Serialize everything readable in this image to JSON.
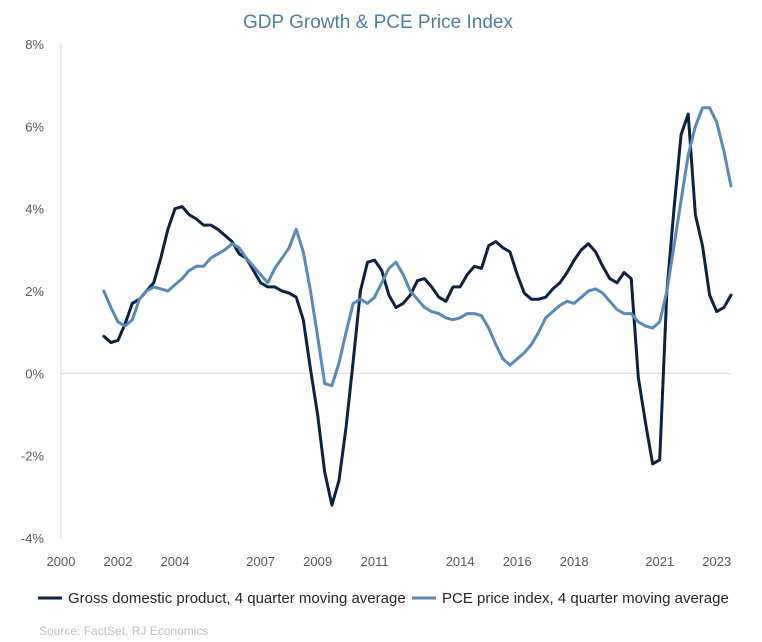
{
  "chart_data": {
    "type": "line",
    "title": "GDP Growth & PCE Price Index",
    "source": "Source: FactSet, RJ Economics",
    "xlabel": "",
    "ylabel": "",
    "xlim": [
      2000,
      2023.5
    ],
    "ylim": [
      -4,
      8
    ],
    "x_ticks": [
      {
        "value": 2000,
        "label": "2000"
      },
      {
        "value": 2002,
        "label": "2002"
      },
      {
        "value": 2004,
        "label": "2004"
      },
      {
        "value": 2007,
        "label": "2007"
      },
      {
        "value": 2009,
        "label": "2009"
      },
      {
        "value": 2011,
        "label": "2011"
      },
      {
        "value": 2014,
        "label": "2014"
      },
      {
        "value": 2016,
        "label": "2016"
      },
      {
        "value": 2018,
        "label": "2018"
      },
      {
        "value": 2021,
        "label": "2021"
      },
      {
        "value": 2023,
        "label": "2023"
      }
    ],
    "y_ticks": [
      {
        "value": 8,
        "label": "8%"
      },
      {
        "value": 6,
        "label": "6%"
      },
      {
        "value": 4,
        "label": "4%"
      },
      {
        "value": 2,
        "label": "2%"
      },
      {
        "value": 0,
        "label": "0%"
      },
      {
        "value": -2,
        "label": "-2%"
      },
      {
        "value": -4,
        "label": "-4%"
      }
    ],
    "grid": false,
    "zero_line": true,
    "legend_position": "bottom",
    "series": [
      {
        "name": "Gross domestic product,  4 quarter moving average",
        "color": "#0d2240",
        "points": [
          [
            2001.5,
            0.9
          ],
          [
            2001.75,
            0.75
          ],
          [
            2002.0,
            0.8
          ],
          [
            2002.25,
            1.2
          ],
          [
            2002.5,
            1.7
          ],
          [
            2002.75,
            1.8
          ],
          [
            2003.0,
            2.0
          ],
          [
            2003.25,
            2.2
          ],
          [
            2003.5,
            2.8
          ],
          [
            2003.75,
            3.5
          ],
          [
            2004.0,
            4.0
          ],
          [
            2004.25,
            4.05
          ],
          [
            2004.5,
            3.85
          ],
          [
            2004.75,
            3.75
          ],
          [
            2005.0,
            3.6
          ],
          [
            2005.25,
            3.6
          ],
          [
            2005.5,
            3.5
          ],
          [
            2005.75,
            3.35
          ],
          [
            2006.0,
            3.2
          ],
          [
            2006.25,
            2.9
          ],
          [
            2006.5,
            2.8
          ],
          [
            2006.75,
            2.5
          ],
          [
            2007.0,
            2.2
          ],
          [
            2007.25,
            2.1
          ],
          [
            2007.5,
            2.1
          ],
          [
            2007.75,
            2.0
          ],
          [
            2008.0,
            1.95
          ],
          [
            2008.25,
            1.85
          ],
          [
            2008.5,
            1.3
          ],
          [
            2008.75,
            0.1
          ],
          [
            2009.0,
            -1.0
          ],
          [
            2009.25,
            -2.4
          ],
          [
            2009.5,
            -3.2
          ],
          [
            2009.75,
            -2.6
          ],
          [
            2010.0,
            -1.3
          ],
          [
            2010.25,
            0.3
          ],
          [
            2010.5,
            2.0
          ],
          [
            2010.75,
            2.7
          ],
          [
            2011.0,
            2.75
          ],
          [
            2011.25,
            2.5
          ],
          [
            2011.5,
            1.9
          ],
          [
            2011.75,
            1.6
          ],
          [
            2012.0,
            1.7
          ],
          [
            2012.25,
            1.9
          ],
          [
            2012.5,
            2.25
          ],
          [
            2012.75,
            2.3
          ],
          [
            2013.0,
            2.1
          ],
          [
            2013.25,
            1.85
          ],
          [
            2013.5,
            1.75
          ],
          [
            2013.75,
            2.1
          ],
          [
            2014.0,
            2.1
          ],
          [
            2014.25,
            2.4
          ],
          [
            2014.5,
            2.6
          ],
          [
            2014.75,
            2.55
          ],
          [
            2015.0,
            3.1
          ],
          [
            2015.25,
            3.2
          ],
          [
            2015.5,
            3.05
          ],
          [
            2015.75,
            2.95
          ],
          [
            2016.0,
            2.4
          ],
          [
            2016.25,
            1.95
          ],
          [
            2016.5,
            1.8
          ],
          [
            2016.75,
            1.8
          ],
          [
            2017.0,
            1.85
          ],
          [
            2017.25,
            2.05
          ],
          [
            2017.5,
            2.2
          ],
          [
            2017.75,
            2.45
          ],
          [
            2018.0,
            2.75
          ],
          [
            2018.25,
            3.0
          ],
          [
            2018.5,
            3.15
          ],
          [
            2018.75,
            2.95
          ],
          [
            2019.0,
            2.6
          ],
          [
            2019.25,
            2.3
          ],
          [
            2019.5,
            2.2
          ],
          [
            2019.75,
            2.45
          ],
          [
            2020.0,
            2.3
          ],
          [
            2020.25,
            -0.1
          ],
          [
            2020.5,
            -1.2
          ],
          [
            2020.75,
            -2.2
          ],
          [
            2021.0,
            -2.1
          ],
          [
            2021.25,
            2.0
          ],
          [
            2021.5,
            4.0
          ],
          [
            2021.75,
            5.8
          ],
          [
            2022.0,
            6.3
          ],
          [
            2022.25,
            3.85
          ],
          [
            2022.5,
            3.1
          ],
          [
            2022.75,
            1.9
          ],
          [
            2023.0,
            1.5
          ],
          [
            2023.25,
            1.6
          ],
          [
            2023.5,
            1.9
          ]
        ]
      },
      {
        "name": "PCE price index, 4 quarter moving average",
        "color": "#5b88b5",
        "points": [
          [
            2001.5,
            2.0
          ],
          [
            2001.75,
            1.6
          ],
          [
            2002.0,
            1.25
          ],
          [
            2002.25,
            1.15
          ],
          [
            2002.5,
            1.3
          ],
          [
            2002.75,
            1.8
          ],
          [
            2003.0,
            2.0
          ],
          [
            2003.25,
            2.1
          ],
          [
            2003.5,
            2.05
          ],
          [
            2003.75,
            2.0
          ],
          [
            2004.0,
            2.15
          ],
          [
            2004.25,
            2.3
          ],
          [
            2004.5,
            2.5
          ],
          [
            2004.75,
            2.6
          ],
          [
            2005.0,
            2.6
          ],
          [
            2005.25,
            2.8
          ],
          [
            2005.5,
            2.9
          ],
          [
            2005.75,
            3.0
          ],
          [
            2006.0,
            3.15
          ],
          [
            2006.25,
            3.05
          ],
          [
            2006.5,
            2.8
          ],
          [
            2006.75,
            2.6
          ],
          [
            2007.0,
            2.4
          ],
          [
            2007.25,
            2.2
          ],
          [
            2007.5,
            2.55
          ],
          [
            2007.75,
            2.8
          ],
          [
            2008.0,
            3.05
          ],
          [
            2008.25,
            3.5
          ],
          [
            2008.5,
            2.95
          ],
          [
            2008.75,
            2.0
          ],
          [
            2009.0,
            0.9
          ],
          [
            2009.25,
            -0.25
          ],
          [
            2009.5,
            -0.3
          ],
          [
            2009.75,
            0.25
          ],
          [
            2010.0,
            1.0
          ],
          [
            2010.25,
            1.7
          ],
          [
            2010.5,
            1.8
          ],
          [
            2010.75,
            1.7
          ],
          [
            2011.0,
            1.85
          ],
          [
            2011.25,
            2.2
          ],
          [
            2011.5,
            2.55
          ],
          [
            2011.75,
            2.7
          ],
          [
            2012.0,
            2.4
          ],
          [
            2012.25,
            2.0
          ],
          [
            2012.5,
            1.8
          ],
          [
            2012.75,
            1.6
          ],
          [
            2013.0,
            1.5
          ],
          [
            2013.25,
            1.45
          ],
          [
            2013.5,
            1.35
          ],
          [
            2013.75,
            1.3
          ],
          [
            2014.0,
            1.35
          ],
          [
            2014.25,
            1.45
          ],
          [
            2014.5,
            1.45
          ],
          [
            2014.75,
            1.4
          ],
          [
            2015.0,
            1.1
          ],
          [
            2015.25,
            0.7
          ],
          [
            2015.5,
            0.35
          ],
          [
            2015.75,
            0.2
          ],
          [
            2016.0,
            0.35
          ],
          [
            2016.25,
            0.5
          ],
          [
            2016.5,
            0.7
          ],
          [
            2016.75,
            1.0
          ],
          [
            2017.0,
            1.35
          ],
          [
            2017.25,
            1.5
          ],
          [
            2017.5,
            1.65
          ],
          [
            2017.75,
            1.75
          ],
          [
            2018.0,
            1.7
          ],
          [
            2018.25,
            1.85
          ],
          [
            2018.5,
            2.0
          ],
          [
            2018.75,
            2.05
          ],
          [
            2019.0,
            1.95
          ],
          [
            2019.25,
            1.75
          ],
          [
            2019.5,
            1.55
          ],
          [
            2019.75,
            1.45
          ],
          [
            2020.0,
            1.45
          ],
          [
            2020.25,
            1.25
          ],
          [
            2020.5,
            1.15
          ],
          [
            2020.75,
            1.1
          ],
          [
            2021.0,
            1.25
          ],
          [
            2021.25,
            2.0
          ],
          [
            2021.5,
            3.1
          ],
          [
            2021.75,
            4.2
          ],
          [
            2022.0,
            5.3
          ],
          [
            2022.25,
            6.0
          ],
          [
            2022.5,
            6.45
          ],
          [
            2022.75,
            6.45
          ],
          [
            2023.0,
            6.1
          ],
          [
            2023.25,
            5.4
          ],
          [
            2023.5,
            4.55
          ]
        ]
      }
    ]
  }
}
